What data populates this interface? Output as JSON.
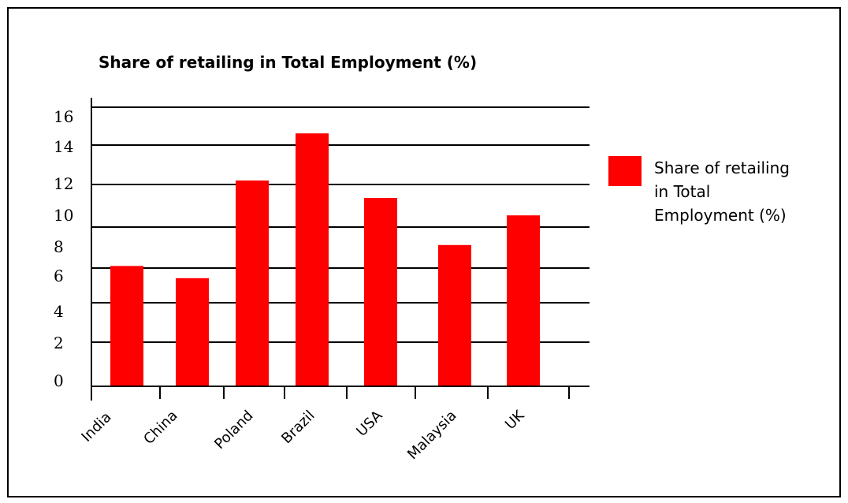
{
  "chart_data": {
    "type": "bar",
    "title": "Share of retailing in Total Employment (%)",
    "xlabel": "",
    "ylabel": "",
    "categories": [
      "India",
      "China",
      "Poland",
      "Brazil",
      "USA",
      "Malaysia",
      "UK"
    ],
    "series": [
      {
        "name": "Share of retailing in Total Employment (%)",
        "values": [
          6.9,
          6.2,
          11.8,
          14.5,
          10.8,
          8.1,
          9.8
        ]
      }
    ],
    "y_tick_labels": [
      "0",
      "2",
      "4",
      "6",
      "8",
      "10",
      "12",
      "14",
      "16"
    ],
    "ylim": [
      0,
      16
    ],
    "grid": true,
    "legend": "right",
    "colors": {
      "bar": "#ff0000",
      "axis": "#000000",
      "background": "#ffffff"
    }
  }
}
